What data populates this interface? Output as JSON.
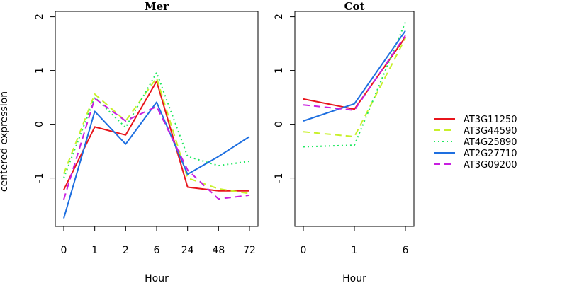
{
  "figure": {
    "ylabel": "centered expression",
    "legend_position": "right",
    "series_styles": [
      {
        "name": "AT3G11250",
        "color": "#E8141B",
        "dash": "solid"
      },
      {
        "name": "AT3G44590",
        "color": "#C8F02A",
        "dash": "dashed"
      },
      {
        "name": "AT4G25890",
        "color": "#1FE860",
        "dash": "dotted"
      },
      {
        "name": "AT2G27710",
        "color": "#1E6FE0",
        "dash": "solid"
      },
      {
        "name": "AT3G09200",
        "color": "#C81EE0",
        "dash": "dashed"
      }
    ]
  },
  "chart_data": [
    {
      "type": "line",
      "title": "Mer",
      "xlabel": "Hour",
      "ylabel": "centered expression",
      "categories": [
        "0",
        "1",
        "2",
        "6",
        "24",
        "48",
        "72"
      ],
      "ylim": [
        -1.9,
        2.1
      ],
      "yticks": [
        -1,
        0,
        1,
        2
      ],
      "grid": false,
      "series": [
        {
          "name": "AT3G11250",
          "values": [
            -1.22,
            -0.05,
            -0.2,
            0.8,
            -1.17,
            -1.24,
            -1.24
          ]
        },
        {
          "name": "AT3G44590",
          "values": [
            -0.92,
            0.56,
            0.06,
            0.86,
            -1.0,
            -1.2,
            -1.29
          ]
        },
        {
          "name": "AT4G25890",
          "values": [
            -1.0,
            0.5,
            -0.06,
            0.96,
            -0.6,
            -0.77,
            -0.69
          ]
        },
        {
          "name": "AT2G27710",
          "values": [
            -1.75,
            0.24,
            -0.37,
            0.41,
            -0.93,
            -0.6,
            -0.23
          ]
        },
        {
          "name": "AT3G09200",
          "values": [
            -1.4,
            0.48,
            0.06,
            0.33,
            -0.85,
            -1.39,
            -1.32
          ]
        }
      ]
    },
    {
      "type": "line",
      "title": "Cot",
      "xlabel": "Hour",
      "categories": [
        "0",
        "1",
        "6"
      ],
      "ylim": [
        -1.9,
        2.1
      ],
      "yticks": [
        -1,
        0,
        1,
        2
      ],
      "grid": false,
      "series": [
        {
          "name": "AT3G11250",
          "values": [
            0.47,
            0.28,
            1.62
          ]
        },
        {
          "name": "AT3G44590",
          "values": [
            -0.14,
            -0.23,
            1.6
          ]
        },
        {
          "name": "AT4G25890",
          "values": [
            -0.42,
            -0.39,
            1.9
          ]
        },
        {
          "name": "AT2G27710",
          "values": [
            0.06,
            0.38,
            1.74
          ]
        },
        {
          "name": "AT3G09200",
          "values": [
            0.36,
            0.26,
            1.65
          ]
        }
      ]
    }
  ]
}
